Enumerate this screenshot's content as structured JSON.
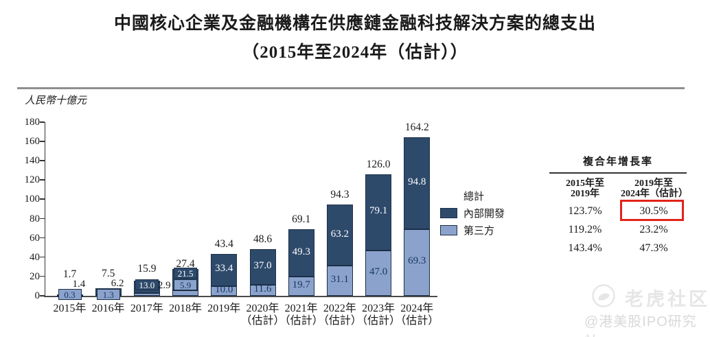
{
  "chart_data": {
    "type": "stacked-bar",
    "title": "中國核心企業及金融機構在供應鏈金融科技解決方案的總支出",
    "subtitle": "（2015年至2024年（估計））",
    "unit_label": "人民幣十億元",
    "ylim": [
      0,
      180
    ],
    "ytick_step": 20,
    "grid": false,
    "legend": {
      "position": "right",
      "total_label": "總計"
    },
    "categories": [
      {
        "label": "2015年",
        "sublabel": ""
      },
      {
        "label": "2016年",
        "sublabel": ""
      },
      {
        "label": "2017年",
        "sublabel": ""
      },
      {
        "label": "2018年",
        "sublabel": ""
      },
      {
        "label": "2019年",
        "sublabel": ""
      },
      {
        "label": "2020年",
        "sublabel": "（估計）"
      },
      {
        "label": "2021年",
        "sublabel": "（估計）"
      },
      {
        "label": "2022年",
        "sublabel": "（估計）"
      },
      {
        "label": "2023年",
        "sublabel": "（估計）"
      },
      {
        "label": "2024年",
        "sublabel": "（估計）"
      }
    ],
    "series": [
      {
        "name": "內部開發",
        "color": "#2E4A6B",
        "values": [
          1.4,
          6.2,
          13.0,
          21.5,
          33.4,
          37.0,
          49.3,
          63.2,
          79.1,
          94.8
        ],
        "labels": [
          "1.4",
          "6.2",
          "13.0",
          "21.5",
          "33.4",
          "37.0",
          "49.3",
          "63.2",
          "79.1",
          "94.8"
        ]
      },
      {
        "name": "第三方",
        "color": "#8BA3CC",
        "values": [
          0.3,
          1.3,
          2.9,
          5.9,
          10.0,
          11.6,
          19.7,
          31.1,
          47.0,
          69.3
        ],
        "labels": [
          "0.3",
          "1.3",
          "2.9",
          "5.9",
          "10.0",
          "11.6",
          "19.7",
          "31.1",
          "47.0",
          "69.3"
        ]
      }
    ],
    "totals": {
      "values": [
        1.7,
        7.5,
        15.9,
        27.4,
        43.4,
        48.6,
        69.1,
        94.3,
        126.0,
        164.2
      ],
      "labels": [
        "1.7",
        "7.5",
        "15.9",
        "27.4",
        "43.4",
        "48.6",
        "69.1",
        "94.3",
        "126.0",
        "164.2"
      ]
    },
    "border_color": "#1C2F47",
    "label_layout": {
      "s0_mode": [
        "above",
        "above",
        "box",
        "box",
        "in",
        "in",
        "in",
        "in",
        "in",
        "in"
      ],
      "s1_mode": [
        "box",
        "box",
        "right",
        "box",
        "in",
        "in",
        "in",
        "in",
        "in",
        "in"
      ],
      "s0_cy": [
        414,
        413,
        415,
        398,
        null,
        null,
        null,
        null,
        null,
        null
      ],
      "s1_cy": [
        429,
        429,
        416,
        415,
        null,
        null,
        null,
        null,
        null,
        null
      ],
      "total_cy": [
        400,
        399,
        392,
        385,
        null,
        null,
        null,
        null,
        null,
        null
      ]
    }
  },
  "cagr_table": {
    "title": "複合年增長率",
    "col_headers": [
      "2015年至\n2019年",
      "2019年至\n2024年（估計）"
    ],
    "rows": [
      [
        "123.7%",
        "30.5%"
      ],
      [
        "119.2%",
        "23.2%"
      ],
      [
        "143.4%",
        "47.3%"
      ]
    ],
    "highlight": {
      "row": 0,
      "col": 1,
      "color": "#E2231A"
    }
  },
  "watermark": {
    "brand": "老虎社区",
    "handle": "@港美股IPO研究社"
  }
}
